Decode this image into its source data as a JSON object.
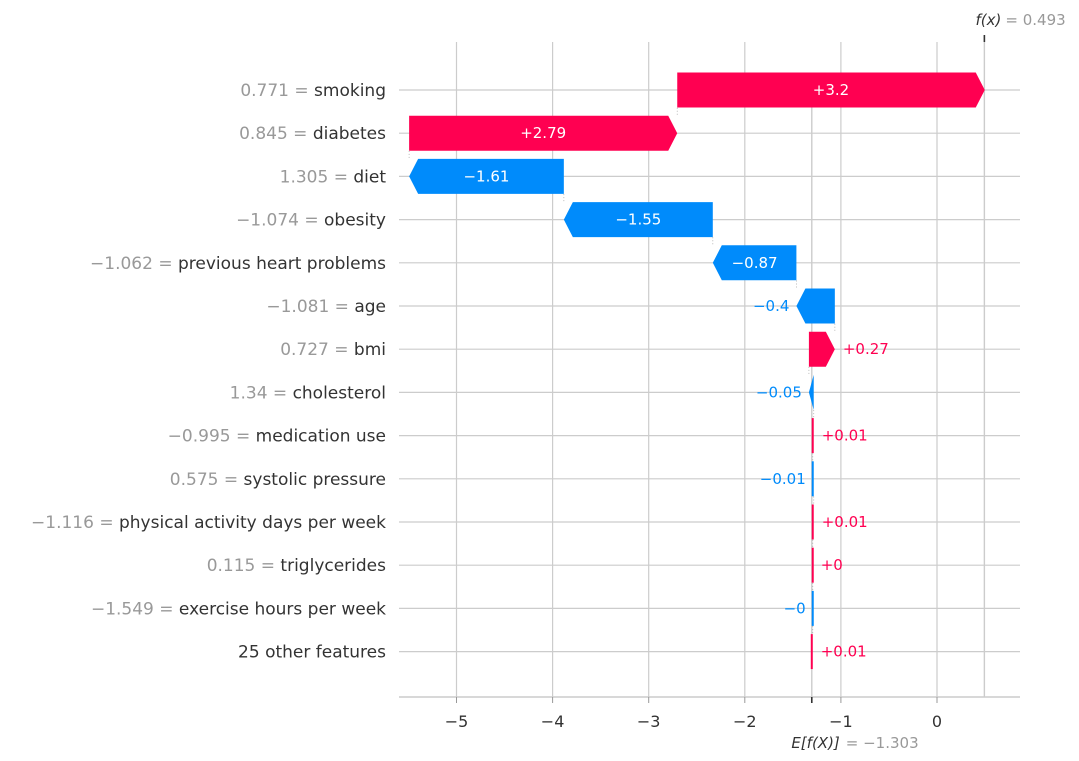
{
  "chart_data": {
    "type": "waterfall",
    "base_value": -1.303,
    "base_label": "E[f(X)]",
    "base_value_text": "= −1.303",
    "final_value": 0.493,
    "final_label": "f(x)",
    "final_value_text": "= 0.493",
    "xlim": [
      -5.58,
      0.88
    ],
    "xticks": [
      -5,
      -4,
      -3,
      -2,
      -1,
      0
    ],
    "xtick_labels": [
      "−5",
      "−4",
      "−3",
      "−2",
      "−1",
      "0"
    ],
    "grid": true,
    "colors": {
      "positive": "#ff0051",
      "negative": "#008bfb"
    },
    "features": [
      {
        "value": "0.771",
        "name": "smoking",
        "contribution": 3.2,
        "label": "+3.2"
      },
      {
        "value": "0.845",
        "name": "diabetes",
        "contribution": 2.79,
        "label": "+2.79"
      },
      {
        "value": "1.305",
        "name": "diet",
        "contribution": -1.61,
        "label": "−1.61"
      },
      {
        "value": "−1.074",
        "name": "obesity",
        "contribution": -1.55,
        "label": "−1.55"
      },
      {
        "value": "−1.062",
        "name": "previous heart problems",
        "contribution": -0.87,
        "label": "−0.87"
      },
      {
        "value": "−1.081",
        "name": "age",
        "contribution": -0.4,
        "label": "−0.4"
      },
      {
        "value": "0.727",
        "name": "bmi",
        "contribution": 0.27,
        "label": "+0.27"
      },
      {
        "value": "1.34",
        "name": "cholesterol",
        "contribution": -0.05,
        "label": "−0.05"
      },
      {
        "value": "−0.995",
        "name": "medication use",
        "contribution": 0.01,
        "label": "+0.01"
      },
      {
        "value": "0.575",
        "name": "systolic pressure",
        "contribution": -0.01,
        "label": "−0.01"
      },
      {
        "value": "−1.116",
        "name": "physical activity days per week",
        "contribution": 0.01,
        "label": "+0.01"
      },
      {
        "value": "0.115",
        "name": "triglycerides",
        "contribution": 0.0,
        "label": "+0"
      },
      {
        "value": "−1.549",
        "name": "exercise hours per week",
        "contribution": -0.0,
        "label": "−0"
      },
      {
        "value": "",
        "name": "25 other features",
        "contribution": 0.01,
        "label": "+0.01"
      }
    ]
  }
}
